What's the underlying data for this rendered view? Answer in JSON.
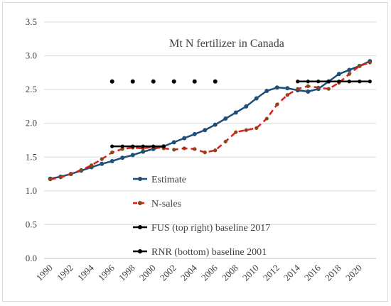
{
  "chart_data": {
    "type": "line",
    "title": "Mt N fertilizer in Canada",
    "xlabel": "",
    "ylabel": "",
    "xlim": [
      1990,
      2021
    ],
    "ylim": [
      0,
      3.5
    ],
    "x_ticks": [
      1990,
      1992,
      1994,
      1996,
      1998,
      2000,
      2002,
      2004,
      2006,
      2008,
      2010,
      2012,
      2014,
      2016,
      2018,
      2020
    ],
    "x_tick_labels": [
      "1990",
      "1992",
      "1994",
      "1996",
      "1998",
      "2000",
      "2002",
      "2004",
      "2006",
      "2008",
      "2010",
      "2012",
      "2014",
      "2016",
      "2018",
      "2020"
    ],
    "y_ticks": [
      0,
      0.5,
      1,
      1.5,
      2,
      2.5,
      3,
      3.5
    ],
    "y_tick_labels": [
      "0.0",
      "0.5",
      "1.0",
      "1.5",
      "2.0",
      "2.5",
      "3.0",
      "3.5"
    ],
    "grid": "horizontal",
    "legend_position": "lower-center",
    "series": [
      {
        "name": "Estimate",
        "color": "#1f4e79",
        "line_style": "solid",
        "marker": "circle",
        "x": [
          1990,
          1991,
          1992,
          1993,
          1994,
          1995,
          1996,
          1997,
          1998,
          1999,
          2000,
          2001,
          2002,
          2003,
          2004,
          2005,
          2006,
          2007,
          2008,
          2009,
          2010,
          2011,
          2012,
          2013,
          2014,
          2015,
          2016,
          2017,
          2018,
          2019,
          2020,
          2021
        ],
        "y": [
          1.18,
          1.21,
          1.25,
          1.3,
          1.35,
          1.4,
          1.44,
          1.49,
          1.53,
          1.58,
          1.62,
          1.66,
          1.72,
          1.78,
          1.84,
          1.9,
          1.98,
          2.07,
          2.16,
          2.25,
          2.37,
          2.48,
          2.53,
          2.52,
          2.49,
          2.47,
          2.51,
          2.62,
          2.73,
          2.79,
          2.85,
          2.92
        ]
      },
      {
        "name": "N-sales",
        "color": "#e31a1c",
        "line_style": "dashed",
        "marker": "circle",
        "x": [
          1990,
          1991,
          1992,
          1993,
          1994,
          1995,
          1996,
          1997,
          1998,
          1999,
          2000,
          2001,
          2002,
          2003,
          2004,
          2005,
          2006,
          2007,
          2008,
          2009,
          2010,
          2011,
          2012,
          2013,
          2014,
          2015,
          2016,
          2017,
          2018,
          2019,
          2020,
          2021
        ],
        "y": [
          1.17,
          1.2,
          1.25,
          1.31,
          1.38,
          1.47,
          1.57,
          1.62,
          1.64,
          1.63,
          1.65,
          1.63,
          1.61,
          1.63,
          1.62,
          1.57,
          1.6,
          1.73,
          1.87,
          1.9,
          1.93,
          2.07,
          2.28,
          2.42,
          2.51,
          2.55,
          2.53,
          2.51,
          2.6,
          2.73,
          2.85,
          2.9
        ]
      },
      {
        "name": "FUS (top right) baseline 2017",
        "color": "#000000",
        "line_style": "solid",
        "marker": "circle",
        "x": [
          2014,
          2015,
          2016,
          2017,
          2018,
          2019,
          2020,
          2021
        ],
        "y": [
          2.62,
          2.62,
          2.62,
          2.62,
          2.62,
          2.62,
          2.62,
          2.62
        ]
      },
      {
        "name": "RNR (bottom) baseline 2001",
        "color": "#000000",
        "line_style": "solid",
        "marker": "circle",
        "x": [
          1996,
          1997,
          1998,
          1999,
          2000,
          2001
        ],
        "y": [
          1.66,
          1.66,
          1.66,
          1.66,
          1.66,
          1.66
        ]
      }
    ],
    "dots": {
      "color": "#000000",
      "x": [
        1996,
        1998,
        2000,
        2002,
        2004,
        2006
      ],
      "y": [
        2.62,
        2.62,
        2.62,
        2.62,
        2.62,
        2.62
      ]
    }
  }
}
